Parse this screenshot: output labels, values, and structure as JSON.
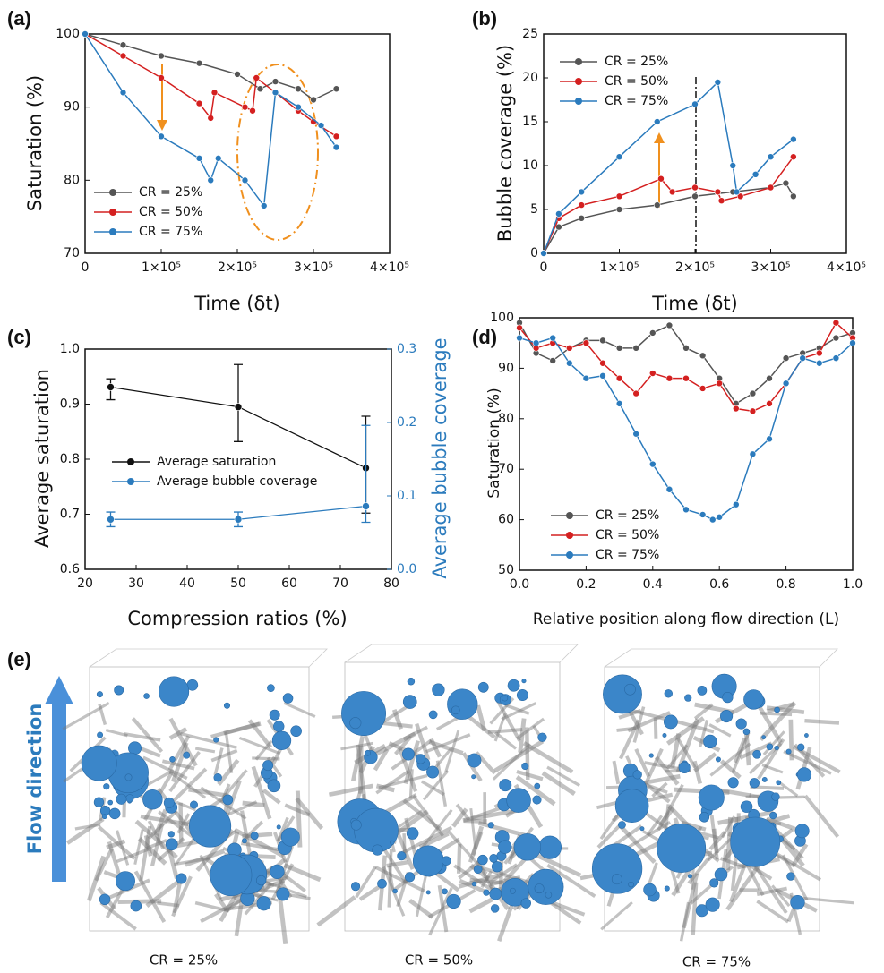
{
  "chart_data": [
    {
      "type": "line",
      "panel_label": "(a)",
      "x_label": "Time (δt)",
      "y_label": "Saturation (%)",
      "xlim": [
        0,
        400000
      ],
      "xticks": [
        0,
        {
          "value": 100000,
          "label": "1×10⁵"
        },
        {
          "value": 200000,
          "label": "2×10⁵"
        },
        {
          "value": 300000,
          "label": "3×10⁵"
        },
        {
          "value": 400000,
          "label": "4×10⁵"
        }
      ],
      "ylim": [
        70,
        100
      ],
      "yticks": [
        70,
        80,
        90,
        100
      ],
      "legend": "lower left",
      "series": [
        {
          "name": "CR = 25%",
          "color": "#555555",
          "x": [
            0,
            50000,
            100000,
            150000,
            200000,
            230000,
            250000,
            280000,
            300000,
            330000
          ],
          "values": [
            100,
            98.5,
            97,
            96,
            94.5,
            92.5,
            93.5,
            92.5,
            91,
            92.5
          ]
        },
        {
          "name": "CR = 50%",
          "color": "#d42020",
          "x": [
            0,
            50000,
            100000,
            150000,
            165000,
            170000,
            210000,
            220000,
            225000,
            250000,
            280000,
            300000,
            330000
          ],
          "values": [
            100,
            97,
            94,
            90.5,
            88.5,
            92,
            90,
            89.5,
            94,
            92,
            89.5,
            88,
            86
          ]
        },
        {
          "name": "CR = 75%",
          "color": "#2b7bbd",
          "x": [
            0,
            50000,
            100000,
            150000,
            165000,
            175000,
            210000,
            235000,
            250000,
            280000,
            310000,
            330000
          ],
          "values": [
            100,
            92,
            86,
            83,
            80,
            83,
            80,
            76.5,
            92,
            90,
            87.5,
            84.5
          ]
        }
      ]
    },
    {
      "type": "line",
      "panel_label": "(b)",
      "x_label": "Time (δt)",
      "y_label": "Bubble coverage (%)",
      "xlim": [
        0,
        400000
      ],
      "xticks": [
        0,
        {
          "value": 100000,
          "label": "1×10⁵"
        },
        {
          "value": 200000,
          "label": "2×10⁵"
        },
        {
          "value": 300000,
          "label": "3×10⁵"
        },
        {
          "value": 400000,
          "label": "4×10⁵"
        }
      ],
      "ylim": [
        0,
        25
      ],
      "yticks": [
        0,
        5,
        10,
        15,
        20,
        25
      ],
      "legend": "upper left",
      "series": [
        {
          "name": "CR = 25%",
          "color": "#555555",
          "x": [
            0,
            20000,
            50000,
            100000,
            150000,
            200000,
            250000,
            300000,
            320000,
            330000
          ],
          "values": [
            0,
            3,
            4,
            5,
            5.5,
            6.5,
            7,
            7.5,
            8,
            6.5
          ]
        },
        {
          "name": "CR = 50%",
          "color": "#d42020",
          "x": [
            0,
            20000,
            50000,
            100000,
            155000,
            170000,
            200000,
            230000,
            235000,
            260000,
            300000,
            330000
          ],
          "values": [
            0,
            4,
            5.5,
            6.5,
            8.5,
            7,
            7.5,
            7,
            6,
            6.5,
            7.5,
            11
          ]
        },
        {
          "name": "CR = 75%",
          "color": "#2b7bbd",
          "x": [
            0,
            20000,
            50000,
            100000,
            150000,
            200000,
            230000,
            250000,
            255000,
            280000,
            300000,
            330000
          ],
          "values": [
            0,
            4.5,
            7,
            11,
            15,
            17,
            19.5,
            10,
            7,
            9,
            11,
            13
          ]
        }
      ]
    },
    {
      "type": "errorbar",
      "panel_label": "(c)",
      "x_label": "Compression ratios (%)",
      "y_label": "Average saturation",
      "y2_label": "Average bubble coverage",
      "xlim": [
        20,
        80
      ],
      "xticks": [
        20,
        30,
        40,
        50,
        60,
        70,
        80
      ],
      "ylim": [
        0.6,
        1
      ],
      "yticks": [
        0.6,
        0.7,
        0.8,
        0.9,
        {
          "value": 1,
          "label": "1.0"
        }
      ],
      "y2lim": [
        0,
        0.3
      ],
      "y2ticks": [
        {
          "value": 0,
          "label": "0.0"
        },
        0.1,
        0.2,
        0.3
      ],
      "legend": "center left",
      "series": [
        {
          "name": "Average saturation",
          "color": "#111111",
          "x": [
            25,
            50,
            75
          ],
          "values": [
            0.931,
            0.895,
            0.784
          ],
          "error_minus": [
            0.023,
            0.063,
            0.082
          ],
          "error_plus": [
            0.015,
            0.077,
            0.094
          ]
        },
        {
          "name": "Average bubble coverage",
          "color": "#2b7bbd",
          "axis": "y2",
          "x": [
            25,
            50,
            75
          ],
          "values": [
            0.068,
            0.068,
            0.086
          ],
          "error_minus": [
            0.01,
            0.01,
            0.022
          ],
          "error_plus": [
            0.01,
            0.01,
            0.11
          ]
        }
      ]
    },
    {
      "type": "line",
      "panel_label": "(d)",
      "x_label": "Relative position along flow direction (L)",
      "y_label": "Saturation (%)",
      "xlim": [
        0,
        1
      ],
      "xticks": [
        {
          "value": 0,
          "label": "0.0"
        },
        0.2,
        0.4,
        0.6,
        0.8,
        {
          "value": 1,
          "label": "1.0"
        }
      ],
      "ylim": [
        50,
        100
      ],
      "yticks": [
        50,
        60,
        70,
        80,
        90,
        100
      ],
      "legend": "lower left",
      "series": [
        {
          "name": "CR = 25%",
          "color": "#555555",
          "x": [
            0,
            0.05,
            0.1,
            0.15,
            0.2,
            0.25,
            0.3,
            0.35,
            0.4,
            0.45,
            0.5,
            0.55,
            0.6,
            0.65,
            0.7,
            0.75,
            0.8,
            0.85,
            0.9,
            0.95,
            1
          ],
          "values": [
            99,
            93,
            91.5,
            94,
            95.5,
            95.5,
            94,
            94,
            97,
            98.5,
            94,
            92.5,
            88,
            83,
            85,
            88,
            92,
            93,
            94,
            96,
            97
          ]
        },
        {
          "name": "CR = 50%",
          "color": "#d42020",
          "x": [
            0,
            0.05,
            0.1,
            0.15,
            0.2,
            0.25,
            0.3,
            0.35,
            0.4,
            0.45,
            0.5,
            0.55,
            0.6,
            0.65,
            0.7,
            0.75,
            0.8,
            0.85,
            0.9,
            0.95,
            1
          ],
          "values": [
            98,
            94,
            95,
            94,
            95,
            91,
            88,
            85,
            89,
            88,
            88,
            86,
            87,
            82,
            81.5,
            83,
            87,
            92,
            93,
            99,
            96
          ]
        },
        {
          "name": "CR = 75%",
          "color": "#2b7bbd",
          "x": [
            0,
            0.05,
            0.1,
            0.15,
            0.2,
            0.25,
            0.3,
            0.35,
            0.4,
            0.45,
            0.5,
            0.55,
            0.58,
            0.6,
            0.65,
            0.7,
            0.75,
            0.8,
            0.85,
            0.9,
            0.95,
            1
          ],
          "values": [
            96,
            95,
            96,
            91,
            88,
            88.5,
            83,
            77,
            71,
            66,
            62,
            61,
            60,
            60.5,
            63,
            73,
            76,
            87,
            92,
            91,
            92,
            95
          ]
        }
      ]
    }
  ],
  "images": {
    "panel_label": "(e)",
    "flow_label": "Flow direction",
    "captions": [
      "CR = 25%",
      "CR = 50%",
      "CR = 75%"
    ]
  }
}
